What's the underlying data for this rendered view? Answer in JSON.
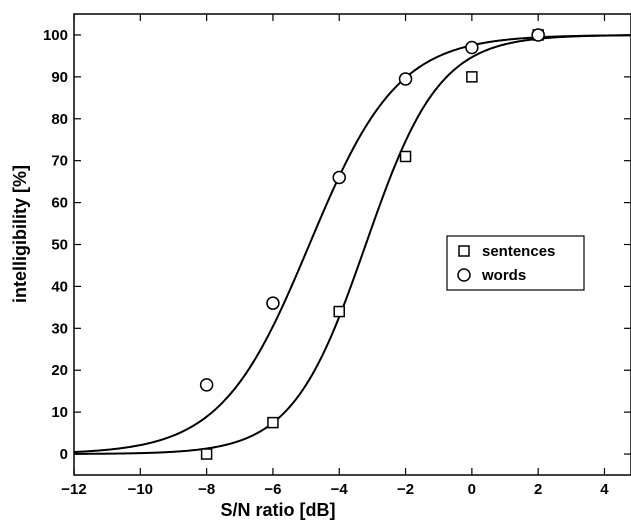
{
  "chart_data": {
    "type": "scatter",
    "title": "",
    "xlabel": "S/N ratio [dB]",
    "ylabel": "intelligibility [%]",
    "xlim": [
      -12,
      4.8
    ],
    "ylim": [
      -5,
      105
    ],
    "x_ticks": [
      -12,
      -10,
      -8,
      -6,
      -4,
      -2,
      0,
      2,
      4
    ],
    "y_ticks": [
      0,
      10,
      20,
      30,
      40,
      50,
      60,
      70,
      80,
      90,
      100
    ],
    "grid": false,
    "legend_position": "right",
    "series": [
      {
        "name": "sentences",
        "marker": "square",
        "x": [
          -8,
          -6,
          -4,
          -2,
          0,
          2
        ],
        "y": [
          0,
          7.5,
          34,
          71,
          90,
          100
        ],
        "fit": {
          "midpoint": -3.2,
          "slope": 0.9
        }
      },
      {
        "name": "words",
        "marker": "circle",
        "x": [
          -8,
          -6,
          -4,
          -2,
          0,
          2
        ],
        "y": [
          16.5,
          36,
          66,
          89.5,
          97,
          100
        ],
        "fit": {
          "midpoint": -4.9,
          "slope": 0.75
        }
      }
    ]
  }
}
